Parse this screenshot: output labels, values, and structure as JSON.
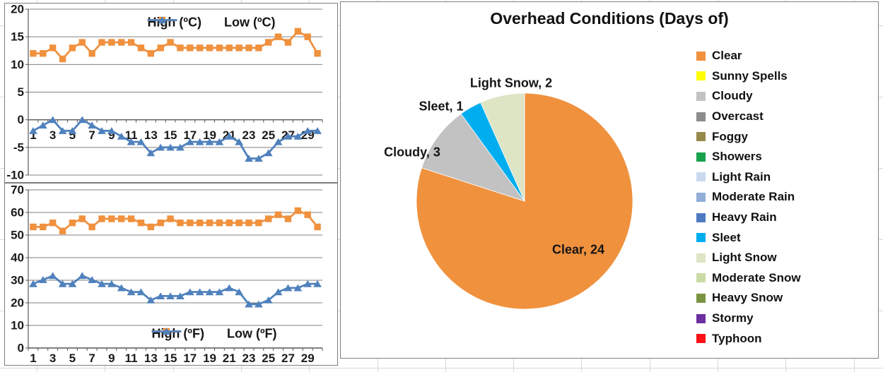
{
  "chart_data": [
    {
      "id": "celsius",
      "type": "line",
      "title": "",
      "x_range": [
        1,
        30
      ],
      "x_tick_labels": [
        "1",
        "3",
        "5",
        "7",
        "9",
        "11",
        "13",
        "15",
        "17",
        "19",
        "21",
        "23",
        "25",
        "27",
        "29"
      ],
      "y_ticks": [
        "20",
        "15",
        "10",
        "5",
        "0",
        "-5",
        "-10"
      ],
      "ylim": [
        -10,
        20
      ],
      "grid": true,
      "legend_position": "top-inside",
      "series": [
        {
          "name": "High (ºC)",
          "marker": "square",
          "color": "#F0913E",
          "values": [
            12,
            12,
            13,
            11,
            13,
            14,
            12,
            14,
            14,
            14,
            14,
            13,
            12,
            13,
            14,
            13,
            13,
            13,
            13,
            13,
            13,
            13,
            13,
            13,
            14,
            15,
            14,
            16,
            15,
            12
          ]
        },
        {
          "name": "Low (ºC)",
          "marker": "triangle",
          "color": "#4F81BD",
          "values": [
            -2,
            -1,
            0,
            -2,
            -2,
            0,
            -1,
            -2,
            -2,
            -3,
            -4,
            -4,
            -6,
            -5,
            -5,
            -5,
            -4,
            -4,
            -4,
            -4,
            -3,
            -4,
            -7,
            -7,
            -6,
            -4,
            -3,
            -3,
            -2,
            -2
          ]
        }
      ]
    },
    {
      "id": "fahrenheit",
      "type": "line",
      "title": "",
      "x_range": [
        1,
        30
      ],
      "x_tick_labels": [
        "1",
        "3",
        "5",
        "7",
        "9",
        "11",
        "13",
        "15",
        "17",
        "19",
        "21",
        "23",
        "25",
        "27",
        "29"
      ],
      "y_ticks": [
        "70",
        "60",
        "50",
        "40",
        "30",
        "20",
        "10",
        "0"
      ],
      "ylim": [
        0,
        70
      ],
      "grid": true,
      "legend_position": "bottom-inside",
      "series": [
        {
          "name": "High (ºF)",
          "marker": "square",
          "color": "#F0913E",
          "values": [
            53.6,
            53.6,
            55.4,
            51.8,
            55.4,
            57.2,
            53.6,
            57.2,
            57.2,
            57.2,
            57.2,
            55.4,
            53.6,
            55.4,
            57.2,
            55.4,
            55.4,
            55.4,
            55.4,
            55.4,
            55.4,
            55.4,
            55.4,
            55.4,
            57.2,
            59,
            57.2,
            60.8,
            59,
            53.6
          ]
        },
        {
          "name": "Low (ºF)",
          "marker": "triangle",
          "color": "#4F81BD",
          "values": [
            28.4,
            30.2,
            32,
            28.4,
            28.4,
            32,
            30.2,
            28.4,
            28.4,
            26.6,
            24.8,
            24.8,
            21.2,
            23,
            23,
            23,
            24.8,
            24.8,
            24.8,
            24.8,
            26.6,
            24.8,
            19.4,
            19.4,
            21.2,
            24.8,
            26.6,
            26.6,
            28.4,
            28.4
          ]
        }
      ]
    },
    {
      "id": "conditions",
      "type": "pie",
      "title": "Overhead Conditions (Days of)",
      "total_days": 30,
      "legend_position": "right",
      "slices": [
        {
          "label": "Clear",
          "value": 24,
          "color": "#F0913E",
          "data_label": "Clear, 24"
        },
        {
          "label": "Cloudy",
          "value": 3,
          "color": "#C2C2C2",
          "data_label": "Cloudy, 3"
        },
        {
          "label": "Sleet",
          "value": 1,
          "color": "#00AEEF",
          "data_label": "Sleet, 1"
        },
        {
          "label": "Light Snow",
          "value": 2,
          "color": "#DDE5C5",
          "data_label": "Light Snow, 2"
        }
      ],
      "legend": [
        {
          "label": "Clear",
          "color": "#F0913E"
        },
        {
          "label": "Sunny Spells",
          "color": "#FFFF00"
        },
        {
          "label": "Cloudy",
          "color": "#C2C2C2"
        },
        {
          "label": "Overcast",
          "color": "#8C8C8C"
        },
        {
          "label": "Foggy",
          "color": "#97894A"
        },
        {
          "label": "Showers",
          "color": "#17A24C"
        },
        {
          "label": "Light Rain",
          "color": "#CBD9EE"
        },
        {
          "label": "Moderate Rain",
          "color": "#92AFD7"
        },
        {
          "label": "Heavy Rain",
          "color": "#4E7BC0"
        },
        {
          "label": "Sleet",
          "color": "#00AEEF"
        },
        {
          "label": "Light Snow",
          "color": "#DDE5C5"
        },
        {
          "label": "Moderate Snow",
          "color": "#CBDBA6"
        },
        {
          "label": "Heavy Snow",
          "color": "#7A9340"
        },
        {
          "label": "Stormy",
          "color": "#6B2FA0"
        },
        {
          "label": "Typhoon",
          "color": "#FB1116"
        }
      ]
    }
  ],
  "style": {
    "gridline_color": "#808080",
    "axis_color": "#595959",
    "tick_text_color": "#1a1a1a",
    "chart_border_color": "#7f7f7f",
    "sheet_gridline_color": "#d8d8d8"
  }
}
